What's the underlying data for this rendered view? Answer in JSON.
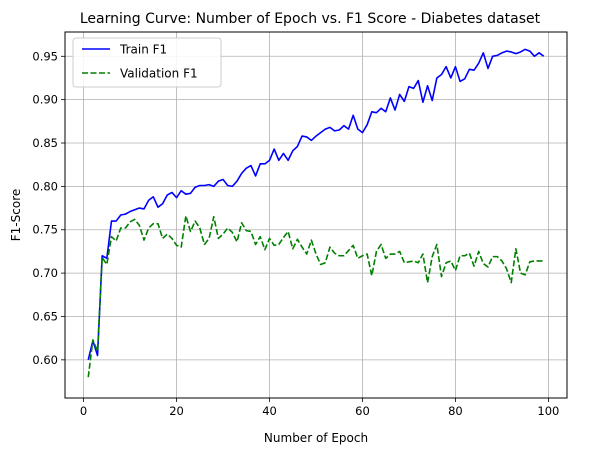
{
  "chart_data": {
    "type": "line",
    "title": "Learning Curve: Number of Epoch vs. F1 Score - Diabetes dataset",
    "xlabel": "Number of Epoch",
    "ylabel": "F1-Score",
    "xlim": [
      -4,
      104
    ],
    "ylim": [
      0.556,
      0.978
    ],
    "xticks": [
      0,
      20,
      40,
      60,
      80,
      100
    ],
    "yticks": [
      0.6,
      0.65,
      0.7,
      0.75,
      0.8,
      0.85,
      0.9,
      0.95
    ],
    "xtick_labels": [
      "0",
      "20",
      "40",
      "60",
      "80",
      "100"
    ],
    "ytick_labels": [
      "0.60",
      "0.65",
      "0.70",
      "0.75",
      "0.80",
      "0.85",
      "0.90",
      "0.95"
    ],
    "grid": true,
    "legend_position": "top-left",
    "series": [
      {
        "name": "Train F1",
        "color": "#0000ff",
        "style": "solid",
        "x": [
          1,
          2,
          3,
          4,
          5,
          6,
          7,
          8,
          9,
          10,
          11,
          12,
          13,
          14,
          15,
          16,
          17,
          18,
          19,
          20,
          21,
          22,
          23,
          24,
          25,
          26,
          27,
          28,
          29,
          30,
          31,
          32,
          33,
          34,
          35,
          36,
          37,
          38,
          39,
          40,
          41,
          42,
          43,
          44,
          45,
          46,
          47,
          48,
          49,
          50,
          51,
          52,
          53,
          54,
          55,
          56,
          57,
          58,
          59,
          60,
          61,
          62,
          63,
          64,
          65,
          66,
          67,
          68,
          69,
          70,
          71,
          72,
          73,
          74,
          75,
          76,
          77,
          78,
          79,
          80,
          81,
          82,
          83,
          84,
          85,
          86,
          87,
          88,
          89,
          90,
          91,
          92,
          93,
          94,
          95,
          96,
          97,
          98,
          99
        ],
        "values": [
          0.6,
          0.622,
          0.605,
          0.72,
          0.717,
          0.76,
          0.76,
          0.767,
          0.768,
          0.771,
          0.773,
          0.775,
          0.774,
          0.784,
          0.788,
          0.776,
          0.78,
          0.79,
          0.793,
          0.787,
          0.795,
          0.791,
          0.792,
          0.799,
          0.801,
          0.801,
          0.802,
          0.8,
          0.806,
          0.808,
          0.801,
          0.8,
          0.806,
          0.815,
          0.821,
          0.824,
          0.812,
          0.826,
          0.826,
          0.83,
          0.843,
          0.83,
          0.838,
          0.83,
          0.841,
          0.846,
          0.858,
          0.857,
          0.853,
          0.858,
          0.862,
          0.866,
          0.868,
          0.864,
          0.865,
          0.87,
          0.866,
          0.882,
          0.866,
          0.862,
          0.871,
          0.886,
          0.885,
          0.89,
          0.886,
          0.902,
          0.888,
          0.906,
          0.898,
          0.915,
          0.913,
          0.922,
          0.897,
          0.916,
          0.899,
          0.925,
          0.929,
          0.938,
          0.925,
          0.938,
          0.921,
          0.924,
          0.935,
          0.934,
          0.942,
          0.954,
          0.936,
          0.95,
          0.951,
          0.954,
          0.956,
          0.955,
          0.953,
          0.955,
          0.958,
          0.956,
          0.95,
          0.954,
          0.95
        ]
      },
      {
        "name": "Validation F1",
        "color": "#008000",
        "style": "dashed",
        "x": [
          1,
          2,
          3,
          4,
          5,
          6,
          7,
          8,
          9,
          10,
          11,
          12,
          13,
          14,
          15,
          16,
          17,
          18,
          19,
          20,
          21,
          22,
          23,
          24,
          25,
          26,
          27,
          28,
          29,
          30,
          31,
          32,
          33,
          34,
          35,
          36,
          37,
          38,
          39,
          40,
          41,
          42,
          43,
          44,
          45,
          46,
          47,
          48,
          49,
          50,
          51,
          52,
          53,
          54,
          55,
          56,
          57,
          58,
          59,
          60,
          61,
          62,
          63,
          64,
          65,
          66,
          67,
          68,
          69,
          70,
          71,
          72,
          73,
          74,
          75,
          76,
          77,
          78,
          79,
          80,
          81,
          82,
          83,
          84,
          85,
          86,
          87,
          88,
          89,
          90,
          91,
          92,
          93,
          94,
          95,
          96,
          97,
          98,
          99
        ],
        "values": [
          0.58,
          0.623,
          0.61,
          0.718,
          0.71,
          0.742,
          0.737,
          0.752,
          0.752,
          0.759,
          0.762,
          0.755,
          0.738,
          0.752,
          0.757,
          0.757,
          0.74,
          0.745,
          0.74,
          0.732,
          0.73,
          0.766,
          0.748,
          0.76,
          0.752,
          0.733,
          0.74,
          0.765,
          0.74,
          0.745,
          0.752,
          0.747,
          0.736,
          0.758,
          0.749,
          0.748,
          0.733,
          0.742,
          0.727,
          0.74,
          0.732,
          0.733,
          0.741,
          0.748,
          0.728,
          0.739,
          0.73,
          0.722,
          0.738,
          0.722,
          0.71,
          0.712,
          0.73,
          0.723,
          0.72,
          0.72,
          0.726,
          0.732,
          0.717,
          0.72,
          0.722,
          0.697,
          0.725,
          0.733,
          0.717,
          0.722,
          0.722,
          0.725,
          0.712,
          0.713,
          0.714,
          0.712,
          0.722,
          0.689,
          0.719,
          0.733,
          0.696,
          0.712,
          0.714,
          0.703,
          0.72,
          0.72,
          0.723,
          0.708,
          0.725,
          0.711,
          0.707,
          0.719,
          0.719,
          0.714,
          0.705,
          0.689,
          0.728,
          0.7,
          0.698,
          0.713,
          0.714,
          0.714,
          0.714
        ]
      }
    ]
  }
}
